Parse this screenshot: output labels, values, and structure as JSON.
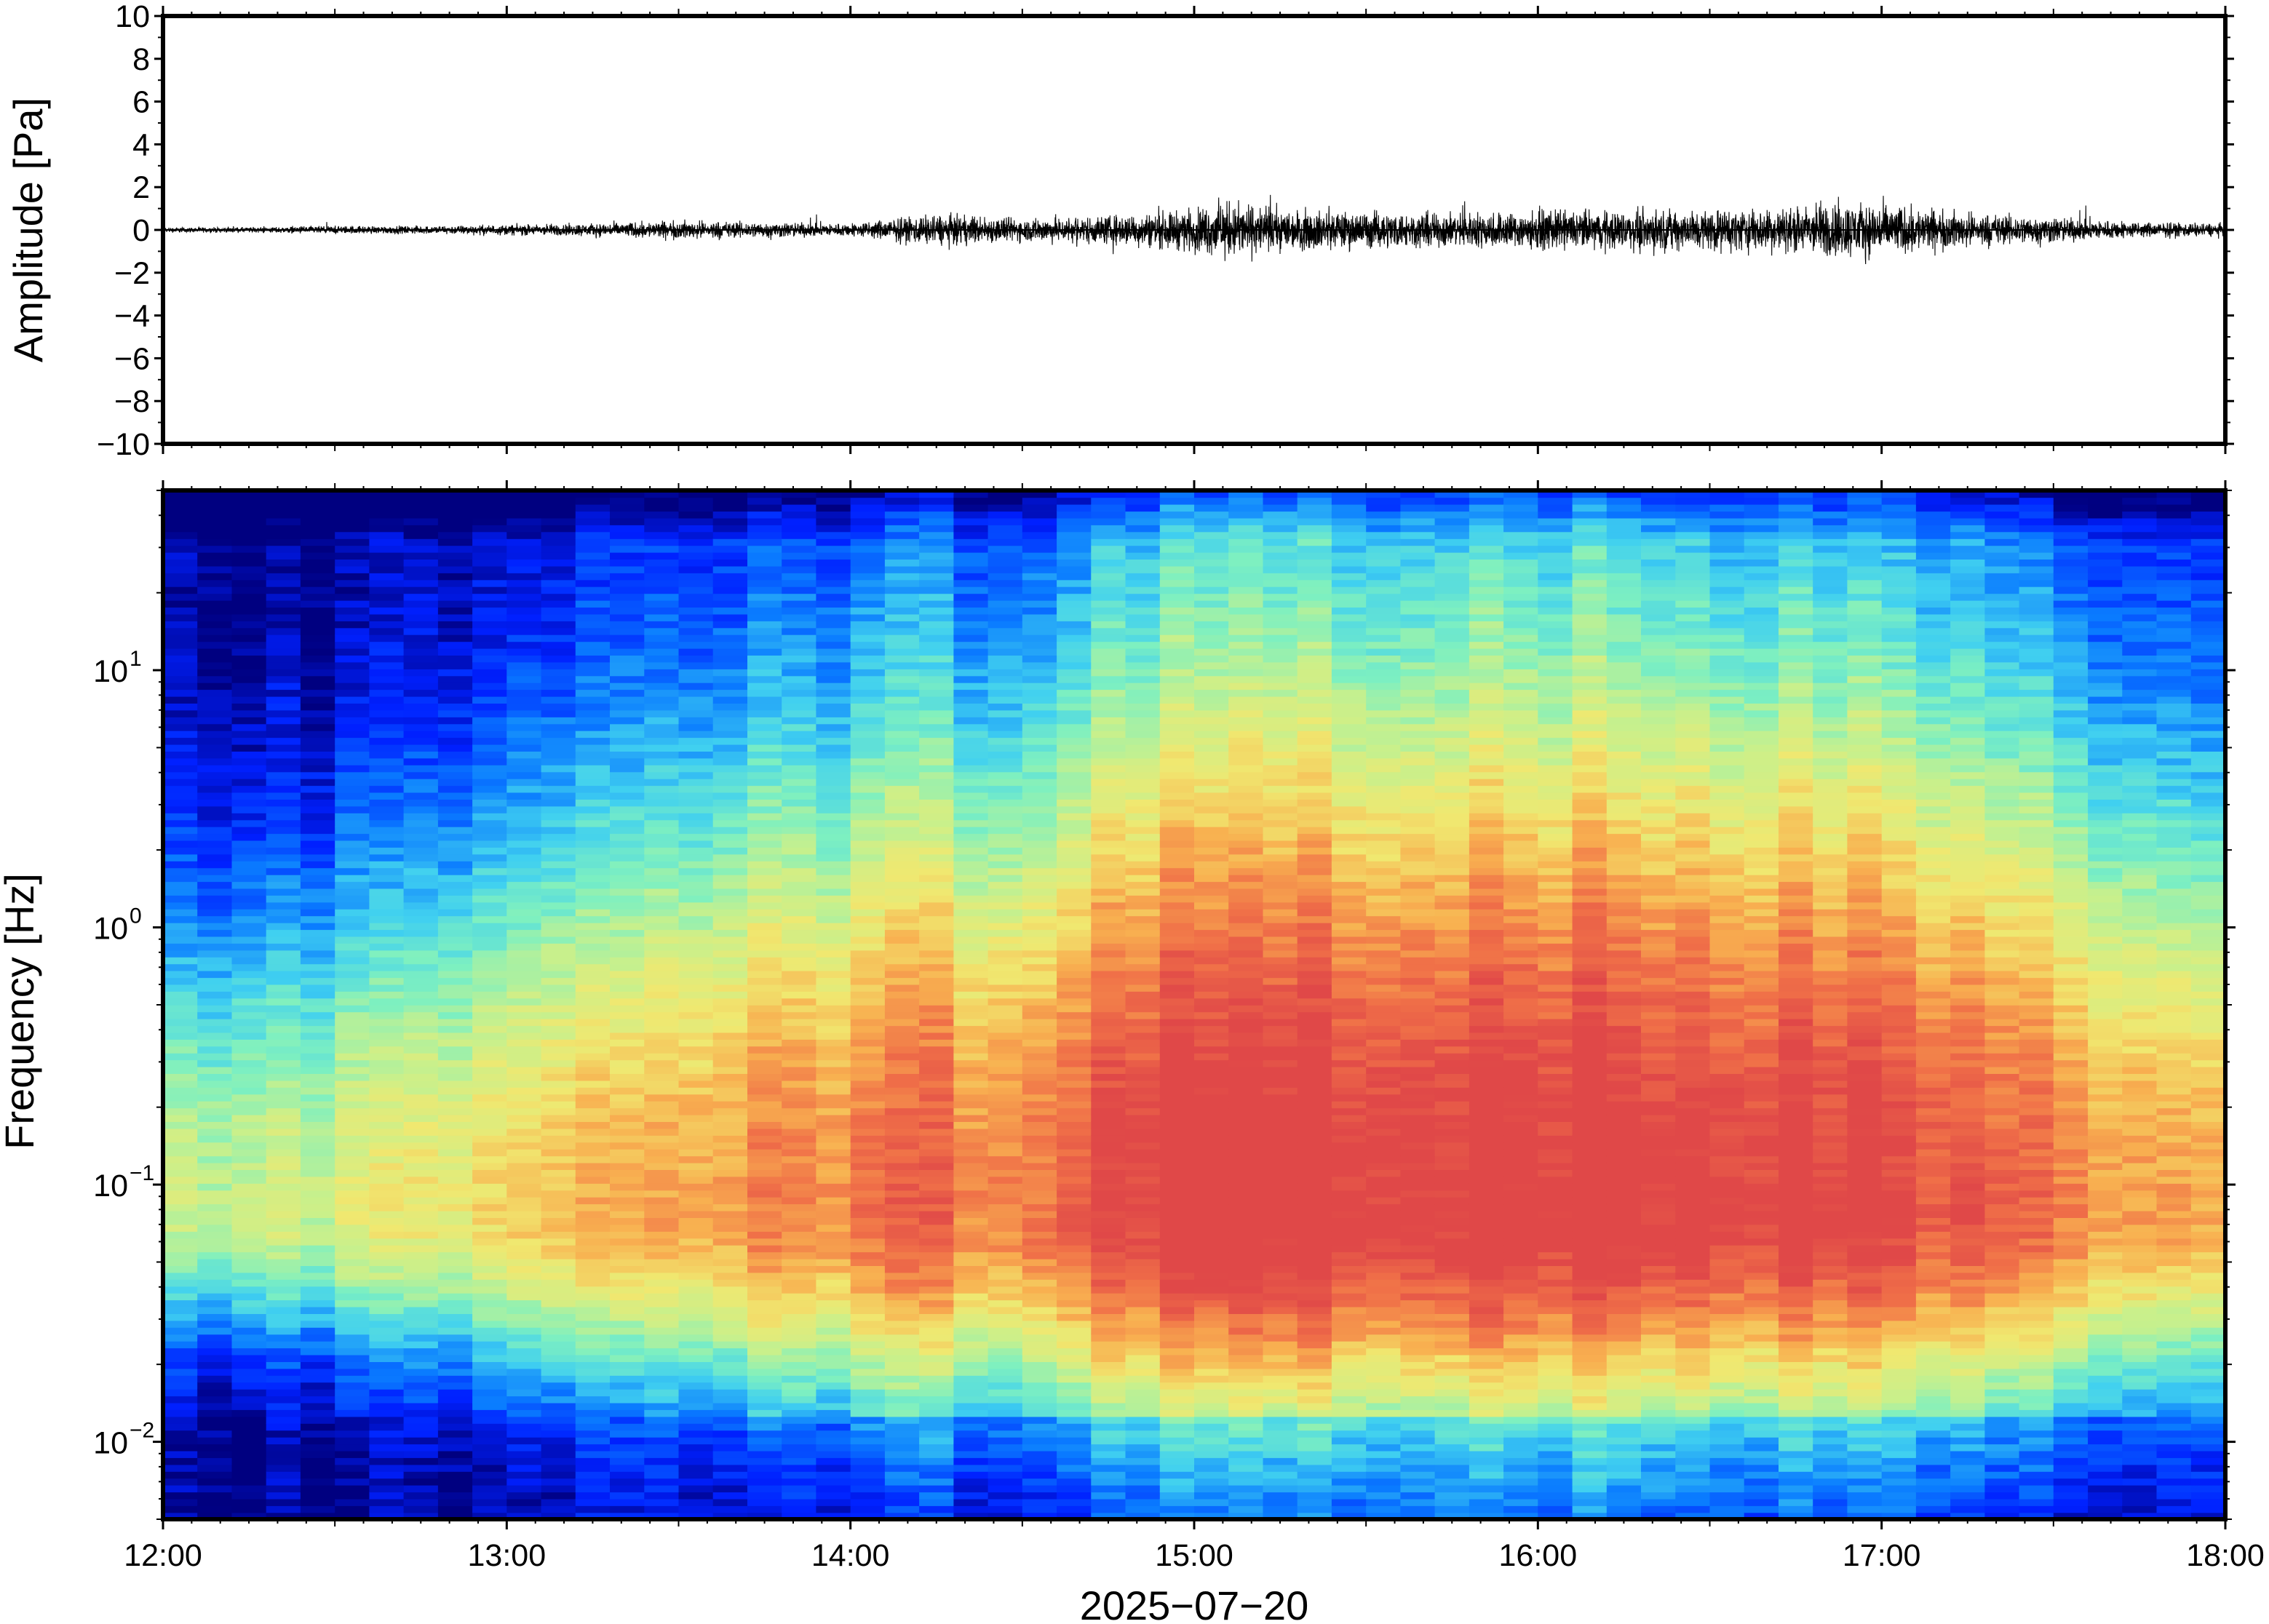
{
  "chart_data": [
    {
      "type": "line",
      "ylabel": "Amplitude [Pa]",
      "ylim": [
        -10,
        10
      ],
      "yticks": [
        10,
        8,
        6,
        4,
        2,
        0,
        -2,
        -4,
        -6,
        -8,
        -10
      ],
      "ytick_labels": [
        "10",
        "8",
        "6",
        "4",
        "2",
        "0",
        "−2",
        "−4",
        "−6",
        "−8",
        "−10"
      ],
      "xlim": [
        "12:00",
        "18:00"
      ],
      "series": [
        {
          "x": [
            "12:00",
            "12:15",
            "12:30",
            "12:45",
            "13:00",
            "13:15",
            "13:30",
            "13:45",
            "14:00",
            "14:10",
            "14:15",
            "14:30",
            "14:45",
            "15:00",
            "15:05",
            "15:15",
            "15:30",
            "15:45",
            "16:00",
            "16:15",
            "16:30",
            "16:45",
            "16:50",
            "17:00",
            "17:15",
            "17:30",
            "17:45",
            "18:00"
          ],
          "envelope_pa": [
            0.2,
            0.2,
            0.3,
            0.3,
            0.4,
            0.5,
            0.7,
            0.6,
            0.5,
            1.0,
            1.2,
            0.9,
            1.1,
            1.6,
            2.2,
            1.6,
            1.4,
            1.3,
            1.5,
            1.5,
            1.6,
            1.7,
            2.2,
            2.0,
            1.3,
            1.0,
            0.6,
            0.5
          ],
          "color": "#000000"
        }
      ]
    },
    {
      "type": "heatmap",
      "xlabel": "2025−07−20",
      "ylabel": "Frequency [Hz]",
      "yscale": "log",
      "ylim": [
        0.005,
        50
      ],
      "xlim": [
        "12:00",
        "18:00"
      ],
      "xticks": [
        "12:00",
        "13:00",
        "14:00",
        "15:00",
        "16:00",
        "17:00",
        "18:00"
      ],
      "ytick_labels": [
        {
          "value": 10,
          "base": "10",
          "exp": "1"
        },
        {
          "value": 1,
          "base": "10",
          "exp": "0"
        },
        {
          "value": 0.1,
          "base": "10",
          "exp": "−1"
        },
        {
          "value": 0.01,
          "base": "10",
          "exp": "−2"
        }
      ],
      "colormap": [
        "#000080",
        "#0020ff",
        "#0a7cff",
        "#40d0f0",
        "#7ef0c0",
        "#c8f08c",
        "#f0e870",
        "#f8b050",
        "#f07048",
        "#e04848"
      ],
      "column_count": 60,
      "frequency_bands_hz": [
        0.006,
        0.01,
        0.02,
        0.03,
        0.05,
        0.1,
        0.2,
        0.5,
        1,
        2,
        5,
        10,
        20,
        40
      ],
      "relative_power_profile": {
        "time_keys": [
          "12:00",
          "12:30",
          "13:00",
          "13:30",
          "14:00",
          "14:30",
          "15:00",
          "15:30",
          "16:00",
          "16:30",
          "17:00",
          "17:30",
          "18:00"
        ],
        "time_level_0_to_1": [
          0.0,
          0.08,
          0.3,
          0.38,
          0.55,
          0.6,
          0.85,
          0.8,
          0.82,
          0.8,
          0.78,
          0.55,
          0.35
        ],
        "peak_band_hz": 0.08
      }
    }
  ]
}
